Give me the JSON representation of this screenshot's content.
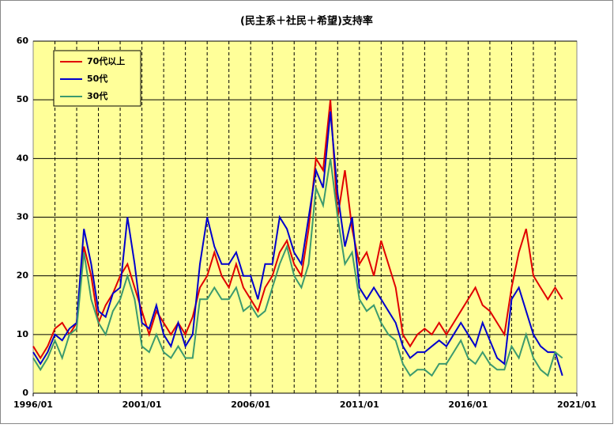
{
  "chart_data": {
    "type": "line",
    "title": "(民主系＋社民＋希望)支持率",
    "x": [
      "1996/01",
      "1996/05",
      "1996/09",
      "1997/01",
      "1997/05",
      "1997/09",
      "1998/01",
      "1998/05",
      "1998/09",
      "1999/01",
      "1999/05",
      "1999/09",
      "2000/01",
      "2000/05",
      "2000/09",
      "2001/01",
      "2001/05",
      "2001/09",
      "2002/01",
      "2002/05",
      "2002/09",
      "2003/01",
      "2003/05",
      "2003/09",
      "2004/01",
      "2004/05",
      "2004/09",
      "2005/01",
      "2005/05",
      "2005/09",
      "2006/01",
      "2006/05",
      "2006/09",
      "2007/01",
      "2007/05",
      "2007/09",
      "2008/01",
      "2008/05",
      "2008/09",
      "2009/01",
      "2009/05",
      "2009/09",
      "2010/01",
      "2010/05",
      "2010/09",
      "2011/01",
      "2011/05",
      "2011/09",
      "2012/01",
      "2012/05",
      "2012/09",
      "2013/01",
      "2013/05",
      "2013/09",
      "2014/01",
      "2014/05",
      "2014/09",
      "2015/01",
      "2015/05",
      "2015/09",
      "2016/01",
      "2016/05",
      "2016/09",
      "2017/01",
      "2017/05",
      "2017/09",
      "2018/01",
      "2018/05",
      "2018/09",
      "2019/01",
      "2019/05",
      "2019/09",
      "2020/01",
      "2020/05"
    ],
    "series": [
      {
        "name": "70代以上",
        "color": "#e00000",
        "values": [
          8,
          6,
          8,
          11,
          12,
          10,
          12,
          25,
          20,
          12,
          15,
          17,
          20,
          22,
          18,
          14,
          10,
          14,
          12,
          10,
          12,
          10,
          13,
          18,
          20,
          24,
          20,
          18,
          22,
          18,
          16,
          14,
          18,
          20,
          24,
          26,
          22,
          20,
          28,
          40,
          38,
          50,
          30,
          38,
          28,
          22,
          24,
          20,
          26,
          22,
          18,
          10,
          8,
          10,
          11,
          10,
          12,
          10,
          12,
          14,
          16,
          18,
          15,
          14,
          12,
          10,
          18,
          24,
          28,
          20,
          18,
          16,
          18,
          16
        ]
      },
      {
        "name": "50代",
        "color": "#0000cc",
        "values": [
          7,
          5,
          7,
          10,
          9,
          11,
          12,
          28,
          22,
          14,
          13,
          17,
          18,
          30,
          22,
          12,
          11,
          15,
          10,
          8,
          12,
          8,
          10,
          22,
          30,
          25,
          22,
          22,
          24,
          20,
          20,
          16,
          22,
          22,
          30,
          28,
          24,
          22,
          30,
          38,
          35,
          48,
          34,
          25,
          30,
          18,
          16,
          18,
          16,
          14,
          12,
          8,
          6,
          7,
          7,
          8,
          9,
          8,
          10,
          12,
          10,
          8,
          12,
          9,
          6,
          5,
          16,
          18,
          14,
          10,
          8,
          7,
          7,
          3
        ]
      },
      {
        "name": "30代",
        "color": "#3c9a6e",
        "values": [
          6,
          4,
          6,
          9,
          6,
          10,
          11,
          24,
          16,
          12,
          10,
          14,
          16,
          20,
          16,
          8,
          7,
          10,
          7,
          6,
          8,
          6,
          6,
          16,
          16,
          18,
          16,
          16,
          18,
          14,
          15,
          13,
          14,
          18,
          22,
          25,
          20,
          18,
          22,
          35,
          32,
          40,
          30,
          22,
          24,
          16,
          14,
          15,
          12,
          10,
          9,
          5,
          3,
          4,
          4,
          3,
          5,
          5,
          7,
          9,
          6,
          5,
          7,
          5,
          4,
          4,
          8,
          6,
          10,
          6,
          4,
          3,
          7,
          6
        ]
      }
    ],
    "xlim": [
      "1996/01",
      "2021/01"
    ],
    "xticks": [
      "1996/01",
      "2001/01",
      "2006/01",
      "2011/01",
      "2016/01",
      "2021/01"
    ],
    "ylim": [
      0,
      60
    ],
    "yticks": [
      0,
      10,
      20,
      30,
      40,
      50,
      60
    ],
    "grid": true
  }
}
